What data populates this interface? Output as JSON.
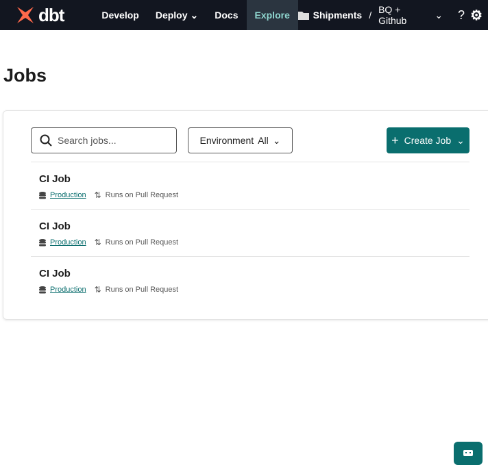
{
  "nav": {
    "logo": "dbt",
    "items": [
      {
        "label": "Develop"
      },
      {
        "label": "Deploy"
      },
      {
        "label": "Docs"
      },
      {
        "label": "Explore",
        "active": true
      }
    ],
    "project": "Shipments",
    "environment": "BQ + Github"
  },
  "page": {
    "title": "Jobs"
  },
  "toolbar": {
    "search_placeholder": "Search jobs...",
    "env_label": "Environment",
    "env_value": "All",
    "create_label": "Create Job"
  },
  "jobs": [
    {
      "name": "CI Job",
      "environment": "Production",
      "trigger": "Runs on Pull Request"
    },
    {
      "name": "CI Job",
      "environment": "Production",
      "trigger": "Runs on Pull Request"
    },
    {
      "name": "CI Job",
      "environment": "Production",
      "trigger": "Runs on Pull Request"
    }
  ],
  "colors": {
    "accent": "#0a6e6e",
    "brand": "#ff694b",
    "nav_bg": "#121620"
  }
}
